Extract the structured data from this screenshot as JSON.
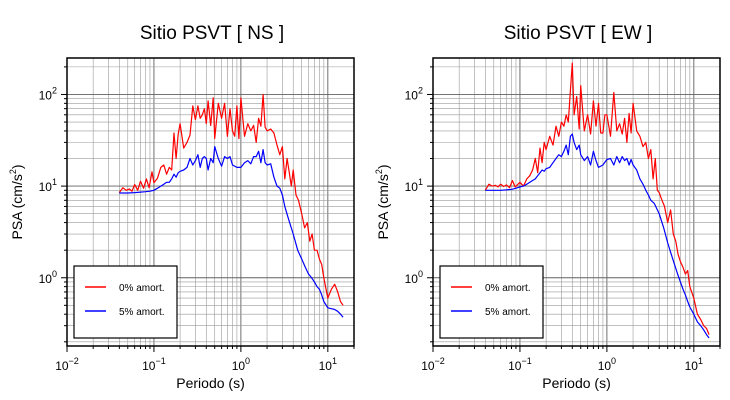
{
  "chart_data": [
    {
      "type": "line",
      "title": "Sitio PSVT [ NS ]",
      "xlabel": "Periodo (s)",
      "ylabel": "PSA (cm/s²)",
      "xscale": "log",
      "yscale": "log",
      "xlim": [
        0.01,
        20
      ],
      "ylim": [
        0.18,
        250
      ],
      "grid": true,
      "legend_position": "bottom-left",
      "x_ticks": [
        {
          "base": "10",
          "exp": "−2"
        },
        {
          "base": "10",
          "exp": "−1"
        },
        {
          "base": "10",
          "exp": "0"
        },
        {
          "base": "10",
          "exp": "1"
        }
      ],
      "y_ticks": [
        {
          "base": "10",
          "exp": "0"
        },
        {
          "base": "10",
          "exp": "1"
        },
        {
          "base": "10",
          "exp": "2"
        }
      ],
      "series": [
        {
          "name": "0% amort.",
          "color": "#ff0000",
          "x": [
            0.04,
            0.044,
            0.048,
            0.052,
            0.056,
            0.06,
            0.065,
            0.07,
            0.076,
            0.082,
            0.088,
            0.095,
            0.1,
            0.11,
            0.12,
            0.13,
            0.14,
            0.15,
            0.16,
            0.17,
            0.18,
            0.19,
            0.2,
            0.22,
            0.24,
            0.26,
            0.28,
            0.3,
            0.32,
            0.34,
            0.36,
            0.38,
            0.4,
            0.42,
            0.45,
            0.48,
            0.5,
            0.55,
            0.6,
            0.65,
            0.7,
            0.75,
            0.8,
            0.85,
            0.9,
            0.95,
            1.0,
            1.1,
            1.2,
            1.3,
            1.4,
            1.5,
            1.6,
            1.7,
            1.8,
            1.9,
            2.0,
            2.2,
            2.4,
            2.6,
            2.8,
            3.0,
            3.2,
            3.4,
            3.6,
            3.8,
            4.0,
            4.3,
            4.6,
            5.0,
            5.4,
            5.8,
            6.2,
            6.6,
            7.0,
            7.5,
            8.0,
            8.5,
            9.0,
            10.0,
            11.0,
            12.0,
            13.0,
            14.0,
            15.0
          ],
          "y": [
            8.5,
            9.6,
            9.0,
            9.3,
            8.8,
            10.4,
            9.0,
            11.3,
            9.5,
            12.0,
            9.6,
            14.3,
            10.9,
            12.2,
            16.0,
            17.0,
            13.5,
            16.0,
            15.0,
            38.0,
            20.0,
            37.0,
            48.0,
            26.0,
            30.0,
            36.0,
            75.0,
            53.0,
            75.0,
            55.0,
            60.0,
            70.0,
            48.0,
            85.0,
            46.0,
            92.0,
            33.0,
            80.0,
            55.0,
            80.0,
            35.0,
            70.0,
            40.0,
            35.0,
            75.0,
            33.0,
            92.0,
            35.0,
            48.0,
            40.0,
            46.0,
            30.0,
            55.0,
            45.0,
            100.0,
            44.0,
            40.0,
            42.0,
            38.0,
            28.0,
            22.0,
            27.0,
            12.0,
            20.0,
            14.0,
            10.0,
            15.0,
            8.0,
            7.0,
            5.0,
            3.5,
            4.0,
            2.5,
            3.0,
            2.0,
            2.0,
            1.6,
            1.4,
            1.0,
            0.6,
            0.75,
            0.85,
            0.7,
            0.55,
            0.5
          ]
        },
        {
          "name": "5% amort.",
          "color": "#0000ff",
          "x": [
            0.04,
            0.05,
            0.06,
            0.07,
            0.08,
            0.09,
            0.1,
            0.11,
            0.12,
            0.13,
            0.14,
            0.15,
            0.16,
            0.17,
            0.18,
            0.19,
            0.2,
            0.22,
            0.24,
            0.26,
            0.28,
            0.3,
            0.32,
            0.34,
            0.36,
            0.38,
            0.4,
            0.42,
            0.45,
            0.48,
            0.5,
            0.55,
            0.6,
            0.65,
            0.7,
            0.75,
            0.8,
            0.9,
            1.0,
            1.1,
            1.2,
            1.3,
            1.4,
            1.5,
            1.6,
            1.7,
            1.8,
            1.9,
            2.0,
            2.2,
            2.4,
            2.6,
            2.8,
            3.0,
            3.2,
            3.5,
            4.0,
            4.5,
            5.0,
            5.5,
            6.0,
            6.5,
            7.0,
            7.5,
            8.0,
            8.5,
            9.0,
            10.0,
            11.0,
            12.0,
            13.0,
            14.0,
            15.0
          ],
          "y": [
            8.4,
            8.4,
            8.5,
            8.6,
            8.7,
            8.8,
            9.0,
            9.5,
            10.0,
            10.5,
            11.0,
            11.0,
            12.0,
            13.5,
            12.5,
            14.0,
            14.5,
            15.0,
            16.0,
            20.0,
            17.0,
            19.0,
            22.0,
            16.0,
            20.0,
            21.0,
            20.0,
            15.0,
            20.0,
            18.0,
            27.0,
            20.0,
            16.5,
            21.0,
            20.0,
            21.0,
            17.0,
            16.0,
            16.0,
            18.0,
            19.0,
            17.5,
            21.0,
            21.0,
            24.0,
            18.0,
            25.0,
            18.0,
            17.0,
            17.5,
            12.5,
            10.0,
            9.5,
            8.0,
            6.0,
            4.5,
            3.0,
            2.0,
            1.6,
            1.3,
            1.1,
            1.0,
            0.9,
            0.8,
            0.75,
            0.65,
            0.55,
            0.47,
            0.46,
            0.45,
            0.43,
            0.4,
            0.37
          ]
        }
      ]
    },
    {
      "type": "line",
      "title": "Sitio PSVT [ EW ]",
      "xlabel": "Periodo (s)",
      "ylabel": "PSA (cm/s²)",
      "xscale": "log",
      "yscale": "log",
      "xlim": [
        0.01,
        20
      ],
      "ylim": [
        0.18,
        250
      ],
      "grid": true,
      "legend_position": "bottom-left",
      "x_ticks": [
        {
          "base": "10",
          "exp": "−2"
        },
        {
          "base": "10",
          "exp": "−1"
        },
        {
          "base": "10",
          "exp": "0"
        },
        {
          "base": "10",
          "exp": "1"
        }
      ],
      "y_ticks": [
        {
          "base": "10",
          "exp": "0"
        },
        {
          "base": "10",
          "exp": "1"
        },
        {
          "base": "10",
          "exp": "2"
        }
      ],
      "series": [
        {
          "name": "0% amort.",
          "color": "#ff0000",
          "x": [
            0.04,
            0.044,
            0.048,
            0.052,
            0.056,
            0.06,
            0.065,
            0.07,
            0.076,
            0.082,
            0.088,
            0.095,
            0.1,
            0.11,
            0.12,
            0.13,
            0.14,
            0.15,
            0.16,
            0.17,
            0.18,
            0.19,
            0.2,
            0.22,
            0.24,
            0.26,
            0.28,
            0.3,
            0.32,
            0.34,
            0.36,
            0.38,
            0.4,
            0.42,
            0.45,
            0.48,
            0.5,
            0.55,
            0.6,
            0.65,
            0.7,
            0.75,
            0.8,
            0.85,
            0.9,
            0.95,
            1.0,
            1.1,
            1.2,
            1.3,
            1.4,
            1.5,
            1.6,
            1.7,
            1.8,
            1.9,
            2.0,
            2.2,
            2.4,
            2.6,
            2.8,
            3.0,
            3.2,
            3.4,
            3.6,
            3.8,
            4.0,
            4.3,
            4.6,
            5.0,
            5.4,
            5.8,
            6.2,
            6.6,
            7.0,
            7.5,
            8.0,
            8.5,
            9.0,
            10.0,
            11.0,
            12.0,
            13.0,
            14.0,
            15.0
          ],
          "y": [
            9.0,
            10.5,
            10.0,
            10.2,
            9.8,
            10.5,
            9.9,
            10.3,
            9.6,
            11.5,
            9.8,
            10.5,
            11.0,
            10.0,
            12.0,
            13.0,
            15.0,
            20.0,
            14.0,
            26.0,
            18.0,
            30.0,
            25.0,
            35.0,
            28.0,
            45.0,
            35.0,
            50.0,
            45.0,
            60.0,
            50.0,
            110.0,
            220.0,
            60.0,
            95.0,
            42.0,
            125.0,
            40.0,
            60.0,
            37.0,
            85.0,
            45.0,
            80.0,
            38.0,
            38.0,
            60.0,
            60.0,
            35.0,
            105.0,
            40.0,
            48.0,
            37.0,
            55.0,
            30.0,
            62.0,
            38.0,
            80.0,
            40.0,
            35.0,
            27.0,
            30.0,
            20.0,
            25.0,
            12.0,
            20.0,
            9.0,
            8.5,
            7.0,
            6.0,
            4.0,
            5.5,
            3.0,
            2.5,
            1.8,
            1.5,
            1.3,
            1.1,
            1.2,
            0.8,
            0.6,
            0.4,
            0.35,
            0.3,
            0.28,
            0.24
          ]
        },
        {
          "name": "5% amort.",
          "color": "#0000ff",
          "x": [
            0.04,
            0.05,
            0.06,
            0.07,
            0.08,
            0.09,
            0.1,
            0.11,
            0.12,
            0.13,
            0.14,
            0.15,
            0.16,
            0.17,
            0.18,
            0.19,
            0.2,
            0.22,
            0.24,
            0.26,
            0.28,
            0.3,
            0.32,
            0.34,
            0.36,
            0.38,
            0.4,
            0.42,
            0.45,
            0.48,
            0.5,
            0.55,
            0.6,
            0.65,
            0.7,
            0.75,
            0.8,
            0.9,
            1.0,
            1.1,
            1.2,
            1.3,
            1.4,
            1.5,
            1.6,
            1.7,
            1.8,
            1.9,
            2.0,
            2.2,
            2.4,
            2.6,
            2.8,
            3.0,
            3.2,
            3.5,
            4.0,
            4.5,
            5.0,
            5.5,
            6.0,
            6.5,
            7.0,
            7.5,
            8.0,
            8.5,
            9.0,
            10.0,
            11.0,
            12.0,
            13.0,
            14.0,
            15.0
          ],
          "y": [
            9.0,
            9.0,
            9.0,
            9.1,
            9.2,
            9.5,
            9.8,
            10.0,
            10.5,
            11.0,
            11.5,
            12.0,
            13.0,
            14.0,
            15.0,
            14.5,
            15.5,
            16.0,
            18.0,
            20.0,
            22.0,
            21.0,
            24.0,
            28.0,
            22.0,
            35.0,
            37.0,
            30.0,
            25.0,
            28.0,
            22.0,
            19.0,
            21.0,
            17.0,
            24.0,
            19.0,
            16.0,
            17.0,
            19.5,
            20.0,
            17.0,
            21.0,
            18.0,
            21.0,
            19.0,
            20.0,
            17.0,
            19.5,
            17.0,
            15.0,
            12.0,
            10.5,
            9.0,
            8.0,
            7.0,
            6.5,
            5.0,
            3.5,
            2.4,
            1.8,
            1.4,
            1.1,
            0.9,
            0.75,
            0.65,
            0.55,
            0.48,
            0.4,
            0.33,
            0.3,
            0.27,
            0.24,
            0.22
          ]
        }
      ]
    }
  ]
}
